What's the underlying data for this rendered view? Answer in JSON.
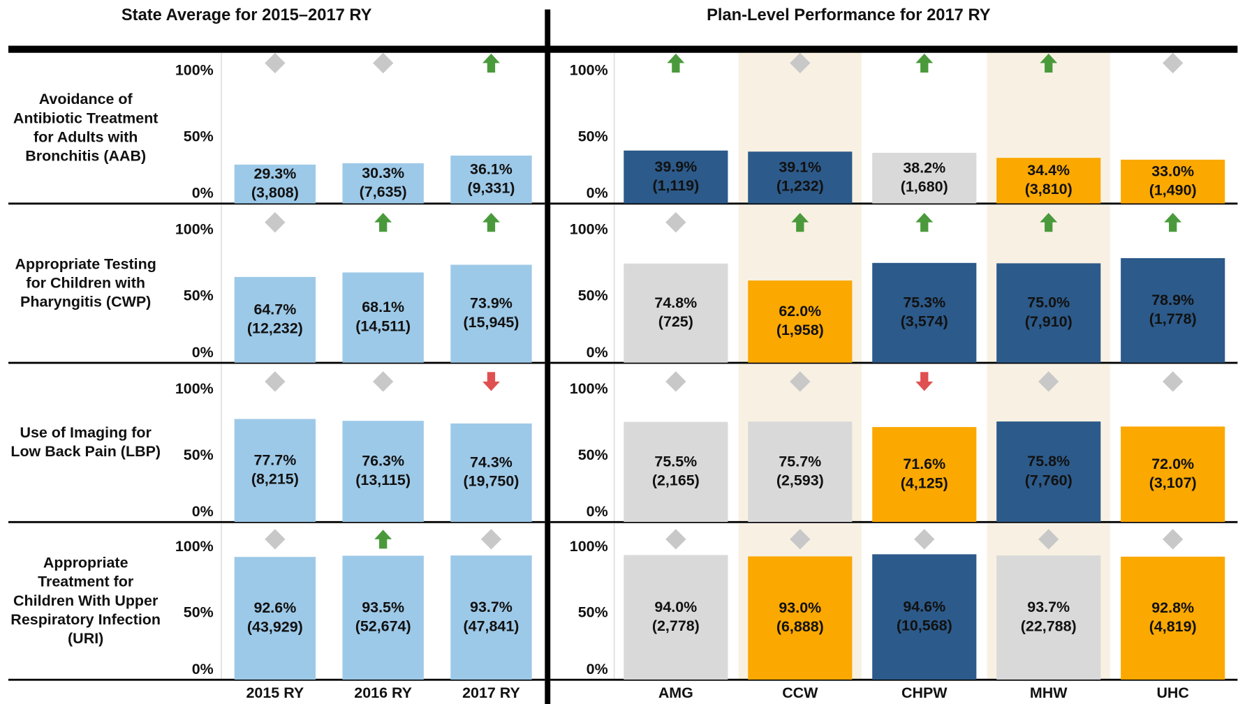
{
  "headings": [
    "State Average for 2015–2017 RY",
    "Plan-Level Performance for 2017 RY"
  ],
  "chart_data": [
    {
      "type": "bar",
      "title": "Avoidance of Antibiotic Treatment for Adults with Bronchitis (AAB)",
      "values": [
        29.3,
        30.3,
        36.1
      ],
      "value_labels": [
        "29.3%",
        "30.3%",
        "36.1%"
      ],
      "count_labels": [
        "(3,808)",
        "(7,635)",
        "(9,331)"
      ],
      "trends": [
        "same",
        "same",
        "up"
      ],
      "color": "#9dc9e8",
      "ylim": [
        0,
        100
      ],
      "yticks": [
        {
          "value": 0,
          "label": "0%"
        },
        {
          "value": 50,
          "label": "50%"
        },
        {
          "value": 100,
          "label": "100%"
        }
      ]
    },
    {
      "type": "bar",
      "title": "Appropriate Testing for Children with Pharyngitis (CWP)",
      "values": [
        64.7,
        68.1,
        73.9
      ],
      "value_labels": [
        "64.7%",
        "68.1%",
        "73.9%"
      ],
      "count_labels": [
        "(12,232)",
        "(14,511)",
        "(15,945)"
      ],
      "trends": [
        "same",
        "up",
        "up"
      ],
      "color": "#9dc9e8",
      "ylim": [
        0,
        100
      ],
      "yticks": [
        {
          "value": 0,
          "label": "0%"
        },
        {
          "value": 50,
          "label": "50%"
        },
        {
          "value": 100,
          "label": "100%"
        }
      ]
    },
    {
      "type": "bar",
      "title": "Use of Imaging for Low Back Pain (LBP)",
      "values": [
        77.7,
        76.3,
        74.3
      ],
      "value_labels": [
        "77.7%",
        "76.3%",
        "74.3%"
      ],
      "count_labels": [
        "(8,215)",
        "(13,115)",
        "(19,750)"
      ],
      "trends": [
        "same",
        "same",
        "down"
      ],
      "color": "#9dc9e8",
      "ylim": [
        0,
        100
      ],
      "yticks": [
        {
          "value": 0,
          "label": "0%"
        },
        {
          "value": 50,
          "label": "50%"
        },
        {
          "value": 100,
          "label": "100%"
        }
      ]
    },
    {
      "type": "bar",
      "title": "Appropriate Treatment for Children With Upper Respiratory Infection (URI)",
      "categories": [
        "2015 RY",
        "2016 RY",
        "2017 RY"
      ],
      "values": [
        92.6,
        93.5,
        93.7
      ],
      "value_labels": [
        "92.6%",
        "93.5%",
        "93.7%"
      ],
      "count_labels": [
        "(43,929)",
        "(52,674)",
        "(47,841)"
      ],
      "trends": [
        "same",
        "up",
        "same"
      ],
      "color": "#9dc9e8",
      "ylim": [
        0,
        100
      ],
      "yticks": [
        {
          "value": 0,
          "label": "0%"
        },
        {
          "value": 50,
          "label": "50%"
        },
        {
          "value": 100,
          "label": "100%"
        }
      ]
    },
    {
      "type": "bar",
      "values": [
        39.9,
        39.1,
        38.2,
        34.4,
        33.0
      ],
      "value_labels": [
        "39.9%",
        "39.1%",
        "38.2%",
        "34.4%",
        "33.0%"
      ],
      "count_labels": [
        "(1,119)",
        "(1,232)",
        "(1,680)",
        "(3,810)",
        "(1,490)"
      ],
      "trends": [
        "up",
        "same",
        "up",
        "up",
        "same"
      ],
      "colors": [
        "#2c5a8a",
        "#2c5a8a",
        "#d9d9d9",
        "#fba800",
        "#fba800"
      ],
      "ylim": [
        0,
        100
      ],
      "yticks": [
        {
          "value": 0,
          "label": "0%"
        },
        {
          "value": 50,
          "label": "50%"
        },
        {
          "value": 100,
          "label": "100%"
        }
      ]
    },
    {
      "type": "bar",
      "values": [
        74.8,
        62.0,
        75.3,
        75.0,
        78.9
      ],
      "value_labels": [
        "74.8%",
        "62.0%",
        "75.3%",
        "75.0%",
        "78.9%"
      ],
      "count_labels": [
        "(725)",
        "(1,958)",
        "(3,574)",
        "(7,910)",
        "(1,778)"
      ],
      "trends": [
        "same",
        "up",
        "up",
        "up",
        "up"
      ],
      "colors": [
        "#d9d9d9",
        "#fba800",
        "#2c5a8a",
        "#2c5a8a",
        "#2c5a8a"
      ],
      "ylim": [
        0,
        100
      ],
      "yticks": [
        {
          "value": 0,
          "label": "0%"
        },
        {
          "value": 50,
          "label": "50%"
        },
        {
          "value": 100,
          "label": "100%"
        }
      ]
    },
    {
      "type": "bar",
      "values": [
        75.5,
        75.7,
        71.6,
        75.8,
        72.0
      ],
      "value_labels": [
        "75.5%",
        "75.7%",
        "71.6%",
        "75.8%",
        "72.0%"
      ],
      "count_labels": [
        "(2,165)",
        "(2,593)",
        "(4,125)",
        "(7,760)",
        "(3,107)"
      ],
      "trends": [
        "same",
        "same",
        "down",
        "same",
        "same"
      ],
      "colors": [
        "#d9d9d9",
        "#d9d9d9",
        "#fba800",
        "#2c5a8a",
        "#fba800"
      ],
      "ylim": [
        0,
        100
      ],
      "yticks": [
        {
          "value": 0,
          "label": "0%"
        },
        {
          "value": 50,
          "label": "50%"
        },
        {
          "value": 100,
          "label": "100%"
        }
      ]
    },
    {
      "type": "bar",
      "categories": [
        "AMG",
        "CCW",
        "CHPW",
        "MHW",
        "UHC"
      ],
      "values": [
        94.0,
        93.0,
        94.6,
        93.7,
        92.8
      ],
      "value_labels": [
        "94.0%",
        "93.0%",
        "94.6%",
        "93.7%",
        "92.8%"
      ],
      "count_labels": [
        "(2,778)",
        "(6,888)",
        "(10,568)",
        "(22,788)",
        "(4,819)"
      ],
      "trends": [
        "same",
        "same",
        "same",
        "same",
        "same"
      ],
      "colors": [
        "#d9d9d9",
        "#fba800",
        "#2c5a8a",
        "#d9d9d9",
        "#fba800"
      ],
      "ylim": [
        0,
        100
      ],
      "yticks": [
        {
          "value": 0,
          "label": "0%"
        },
        {
          "value": 50,
          "label": "50%"
        },
        {
          "value": 100,
          "label": "100%"
        }
      ]
    }
  ]
}
